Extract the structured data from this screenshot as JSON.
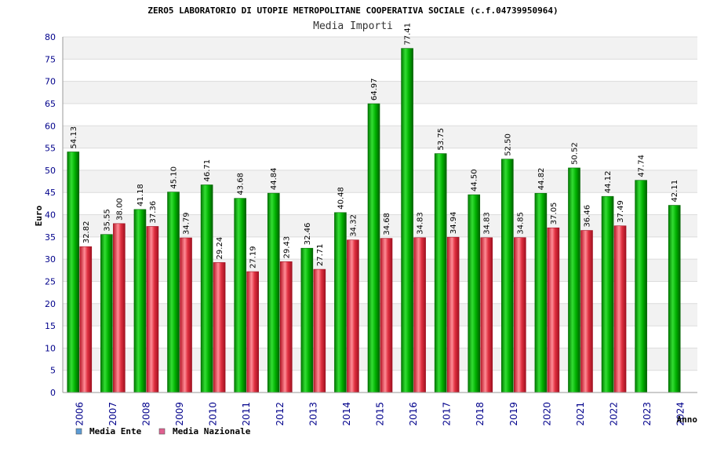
{
  "chart_data": {
    "type": "bar",
    "title": "ZERO5 LABORATORIO DI UTOPIE METROPOLITANE COOPERATIVA SOCIALE (c.f.04739950964)",
    "subtitle": "Media Importi",
    "xlabel": "Anno",
    "ylabel": "Euro",
    "ylim": [
      0,
      80
    ],
    "ytick_step": 5,
    "grid": true,
    "legend_position": "bottom-left",
    "categories": [
      "2006",
      "2007",
      "2008",
      "2009",
      "2010",
      "2011",
      "2012",
      "2013",
      "2014",
      "2015",
      "2016",
      "2017",
      "2018",
      "2019",
      "2020",
      "2021",
      "2022",
      "2023",
      "2024"
    ],
    "series": [
      {
        "name": "Media Ente",
        "legend_color": "#5b9bd5",
        "bar_color": "#00b000",
        "values": [
          54.13,
          35.55,
          41.18,
          45.1,
          46.71,
          43.68,
          44.84,
          32.46,
          40.48,
          64.97,
          77.41,
          53.75,
          44.5,
          52.5,
          44.82,
          50.52,
          44.12,
          47.74,
          42.11
        ],
        "labels": [
          "54.13",
          "35.55",
          "41.18",
          "45.10",
          "46.71",
          "43.68",
          "44.84",
          "32.46",
          "40.48",
          "64.97",
          "77.41",
          "53.75",
          "44.50",
          "52.50",
          "44.82",
          "50.52",
          "44.12",
          "47.74",
          "42.11"
        ]
      },
      {
        "name": "Media Nazionale",
        "legend_color": "#e06090",
        "bar_color": "#e03040",
        "values": [
          32.82,
          38.0,
          37.36,
          34.79,
          29.24,
          27.19,
          29.43,
          27.71,
          34.32,
          34.68,
          34.83,
          34.94,
          34.83,
          34.85,
          37.05,
          36.46,
          37.49,
          null,
          null
        ],
        "labels": [
          "32.82",
          "38.00",
          "37.36",
          "34.79",
          "29.24",
          "27.19",
          "29.43",
          "27.71",
          "34.32",
          "34.68",
          "34.83",
          "34.94",
          "34.83",
          "34.85",
          "37.05",
          "36.46",
          "37.49",
          null,
          null
        ]
      }
    ]
  }
}
